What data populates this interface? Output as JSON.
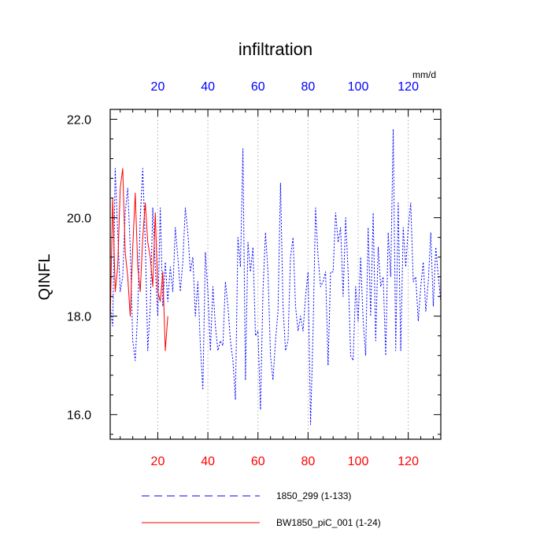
{
  "chart_data": {
    "type": "line",
    "title": "infiltration",
    "units": "mm/d",
    "ylabel": "QINFL",
    "xlim": [
      1,
      133
    ],
    "ylim": [
      15.5,
      22.2
    ],
    "xticks": [
      20,
      40,
      60,
      80,
      100,
      120
    ],
    "yticks": [
      16.0,
      18.0,
      20.0,
      22.0
    ],
    "ytick_labels": [
      "16.0",
      "18.0",
      "20.0",
      "22.0"
    ],
    "grid": "vertical-dotted",
    "colors": {
      "bottom_ticks": "#ff0000",
      "top_ticks": "#0000ff"
    },
    "series": [
      {
        "name": "1850_299 (1-133)",
        "color": "#0000ff",
        "style": "dashed",
        "x_start": 1,
        "values": [
          18.2,
          17.8,
          21.0,
          19.7,
          18.5,
          18.8,
          20.1,
          20.6,
          19.4,
          17.5,
          17.1,
          18.1,
          20.0,
          21.0,
          19.5,
          17.3,
          18.2,
          20.2,
          19.0,
          18.0,
          20.2,
          18.2,
          19.1,
          18.3,
          19.0,
          18.5,
          19.8,
          19.2,
          18.5,
          19.1,
          20.2,
          19.7,
          18.9,
          19.2,
          18.0,
          18.7,
          17.4,
          16.5,
          19.3,
          18.5,
          17.3,
          18.6,
          17.8,
          17.3,
          17.5,
          17.4,
          18.7,
          18.2,
          17.5,
          17.1,
          16.3,
          19.6,
          19.0,
          21.4,
          16.7,
          19.5,
          18.9,
          19.4,
          17.6,
          17.7,
          16.1,
          18.5,
          19.7,
          18.9,
          17.2,
          16.7,
          17.5,
          18.1,
          20.7,
          18.2,
          17.3,
          17.5,
          19.2,
          19.6,
          18.2,
          17.7,
          18.0,
          17.7,
          18.4,
          18.9,
          15.8,
          17.7,
          20.2,
          19.2,
          18.6,
          18.7,
          18.9,
          17.0,
          18.9,
          18.9,
          20.1,
          19.5,
          19.8,
          18.4,
          20.0,
          18.9,
          17.2,
          17.1,
          18.6,
          17.9,
          19.2,
          17.9,
          17.2,
          19.8,
          18.0,
          20.1,
          17.5,
          19.4,
          18.6,
          18.8,
          17.2,
          19.7,
          18.8,
          21.8,
          17.3,
          20.3,
          17.3,
          19.8,
          19.0,
          19.8,
          20.3,
          18.7,
          18.8,
          17.9,
          18.6,
          19.1,
          18.1,
          18.7,
          19.7,
          18.2,
          19.4,
          18.8,
          18.3
        ]
      },
      {
        "name": "BW1850_piC_001 (1-24)",
        "color": "#ff0000",
        "style": "solid",
        "x_start": 1,
        "values": [
          17.9,
          20.4,
          18.5,
          19.0,
          20.6,
          21.0,
          19.3,
          18.8,
          18.0,
          19.4,
          20.5,
          19.0,
          18.5,
          19.6,
          20.3,
          19.5,
          19.2,
          18.6,
          20.1,
          18.5,
          18.3,
          18.9,
          17.3,
          18.0
        ]
      }
    ]
  }
}
